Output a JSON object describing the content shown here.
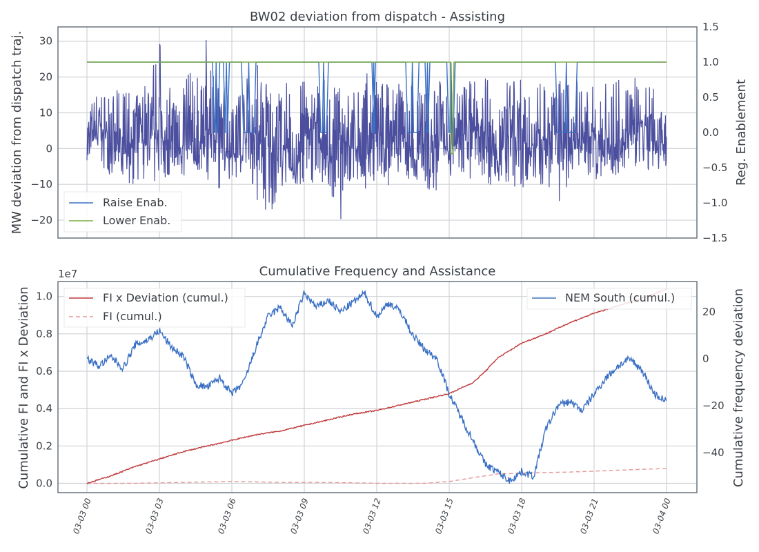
{
  "chart_data": [
    {
      "type": "line",
      "title": "BW02 deviation from dispatch - Assisting",
      "ylabel": "MW deviation from dispatch traj.",
      "y2label": "Reg. Enablement",
      "ylim": [
        -25,
        34
      ],
      "yticks": [
        -20,
        -10,
        0,
        10,
        20,
        30
      ],
      "y2lim": [
        -1.5,
        1.5
      ],
      "y2ticks": [
        "1.5",
        "1.0",
        "0.5",
        "0.0",
        "−0.5",
        "−1.0",
        "−1.5"
      ],
      "grid": true,
      "legend_position": "lower-left",
      "series": [
        {
          "name": "Raise Enab.",
          "axis": "right",
          "color": "#3a70c4",
          "values_description_off": "enablement mostly 1.0 with drops to 0.0",
          "x_hours": [
            0,
            6.5,
            16.0,
            17.0,
            24
          ],
          "off_windows_hours": [
            [
              5.2,
              5.5
            ],
            [
              5.65,
              5.9
            ],
            [
              6.4,
              7.0
            ],
            [
              9.6,
              10.0
            ],
            [
              11.8,
              11.95
            ],
            [
              13.2,
              13.75
            ],
            [
              14.0,
              14.2
            ],
            [
              14.9,
              15.25
            ],
            [
              19.4,
              20.3
            ]
          ],
          "on_value": 1.0,
          "off_value": 0.0
        },
        {
          "name": "Lower Enab.",
          "axis": "right",
          "color": "#7cad45",
          "on_value": 1.0,
          "dip_hours": [
            15.05,
            15.15
          ],
          "dip_value": -0.3
        },
        {
          "name": "deviation",
          "axis": "left",
          "color": "#4b4f9e",
          "x_hours": [
            0,
            0.5,
            1,
            1.5,
            2,
            2.5,
            3,
            3.5,
            4,
            4.5,
            5,
            5.5,
            6,
            6.5,
            7,
            7.5,
            8,
            8.5,
            9,
            9.5,
            10,
            10.5,
            11,
            11.5,
            12,
            12.5,
            13,
            13.5,
            14,
            14.5,
            15,
            15.5,
            16,
            16.5,
            17,
            17.5,
            18,
            18.5,
            19,
            19.5,
            20,
            20.5,
            21,
            21.5,
            22,
            22.5,
            23,
            23.5,
            24
          ],
          "values": [
            2,
            5,
            3,
            -2,
            4,
            1,
            6,
            -4,
            2,
            -3,
            5,
            3,
            -2,
            1,
            4,
            -1,
            3,
            -5,
            2,
            6,
            -3,
            4,
            1,
            -2,
            3,
            0,
            5,
            -3,
            2,
            4,
            -1,
            3,
            6,
            1,
            -2,
            4,
            2,
            -1,
            5,
            3,
            -2,
            1,
            4,
            2,
            -3,
            5,
            8,
            2,
            3
          ],
          "envelope_min": [
            -4,
            -6,
            -8,
            -10,
            -12,
            -9,
            -11,
            -8,
            -10,
            -7,
            -9,
            -12,
            -8,
            -11,
            -15,
            -20,
            -12,
            -10,
            -13,
            -9,
            -11,
            -21,
            -10,
            -12,
            -9,
            -11,
            -8,
            -10,
            -13,
            -15,
            -9,
            -10,
            -8,
            -11,
            -9,
            -10,
            -12,
            -9,
            -11,
            -17,
            -10,
            -8,
            -9,
            -7,
            -8,
            -7,
            -6,
            -7,
            -5
          ],
          "envelope_max": [
            12,
            17,
            15,
            18,
            14,
            22,
            31,
            16,
            24,
            20,
            32,
            18,
            22,
            19,
            25,
            23,
            17,
            21,
            19,
            18,
            20,
            17,
            16,
            22,
            19,
            21,
            18,
            20,
            17,
            19,
            21,
            18,
            20,
            29,
            17,
            19,
            22,
            18,
            20,
            23,
            18,
            21,
            17,
            19,
            20,
            18,
            24,
            19,
            13
          ]
        }
      ],
      "xlim": [
        0,
        24
      ]
    },
    {
      "type": "line",
      "title": "Cumulative Frequency and Assistance",
      "ylabel": "Cumulative FI and FI x Deviation",
      "y2label": "Cumulative frequency deviation",
      "offset_text": "1e7",
      "ylim": [
        -0.05,
        1.08
      ],
      "yticks": [
        "0.0",
        "0.2",
        "0.4",
        "0.6",
        "0.8",
        "1.0"
      ],
      "y2lim": [
        -57,
        33
      ],
      "y2ticks": [
        "−40",
        "−20",
        "0",
        "20"
      ],
      "xlim": [
        0,
        24
      ],
      "xticks": [
        "03-03 00",
        "03-03 03",
        "03-03 06",
        "03-03 09",
        "03-03 12",
        "03-03 15",
        "03-03 18",
        "03-03 21",
        "03-04 00"
      ],
      "grid": true,
      "series": [
        {
          "name": "FI x Deviation (cumul.)",
          "axis": "left",
          "color": "#c0393b",
          "style": "solid",
          "x_hours": [
            0,
            1,
            2,
            3,
            4,
            5,
            6,
            7,
            8,
            9,
            10,
            11,
            12,
            13,
            14,
            15,
            16,
            16.5,
            17,
            18,
            19,
            20,
            21,
            22,
            23,
            24
          ],
          "values": [
            0.0,
            0.04,
            0.09,
            0.13,
            0.17,
            0.2,
            0.23,
            0.26,
            0.28,
            0.31,
            0.34,
            0.37,
            0.39,
            0.42,
            0.45,
            0.48,
            0.54,
            0.6,
            0.67,
            0.75,
            0.8,
            0.86,
            0.91,
            0.95,
            0.99,
            1.04
          ]
        },
        {
          "name": "FI (cumul.)",
          "axis": "left",
          "color": "#e59a9a",
          "style": "dashed",
          "x_hours": [
            0,
            2,
            4,
            6,
            8,
            10,
            12,
            14,
            15,
            16,
            17,
            18,
            20,
            22,
            24
          ],
          "values": [
            0.0,
            0.0,
            0.005,
            0.01,
            0.005,
            0.005,
            0.0,
            0.0,
            0.01,
            0.03,
            0.05,
            0.055,
            0.06,
            0.07,
            0.08
          ]
        },
        {
          "name": "NEM South (cumul.)",
          "axis": "right",
          "color": "#3a70c4",
          "style": "solid",
          "x_hours": [
            0,
            0.5,
            1,
            1.5,
            2,
            2.5,
            3,
            3.5,
            4,
            4.5,
            5,
            5.5,
            6,
            6.5,
            7,
            7.5,
            8,
            8.5,
            9,
            9.5,
            10,
            10.5,
            11,
            11.5,
            12,
            12.5,
            13,
            13.5,
            14,
            14.5,
            15,
            15.5,
            16,
            16.5,
            17,
            17.5,
            18,
            18.5,
            19,
            19.5,
            20,
            20.5,
            21,
            21.5,
            22,
            22.5,
            23,
            23.5,
            24
          ],
          "values": [
            0,
            -3,
            1,
            -4,
            6,
            8,
            12,
            5,
            1,
            -11,
            -12,
            -8,
            -15,
            -10,
            5,
            18,
            22,
            14,
            28,
            22,
            25,
            20,
            24,
            28,
            18,
            24,
            20,
            10,
            4,
            0,
            -15,
            -25,
            -35,
            -45,
            -48,
            -52,
            -48,
            -50,
            -30,
            -20,
            -18,
            -22,
            -15,
            -8,
            -3,
            0,
            -5,
            -15,
            -18
          ]
        }
      ],
      "legend_left_position": "upper-left",
      "legend_right_position": "upper-right"
    }
  ]
}
